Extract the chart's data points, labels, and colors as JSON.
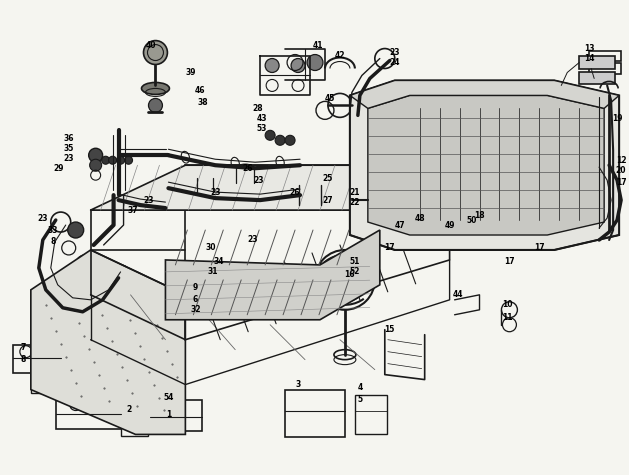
{
  "bg_color": "#f5f5f0",
  "line_color": "#1a1a1a",
  "fig_width": 6.29,
  "fig_height": 4.75,
  "dpi": 100,
  "tunnel_color": "#e8e8e3",
  "bumper_color": "#e0e0db"
}
